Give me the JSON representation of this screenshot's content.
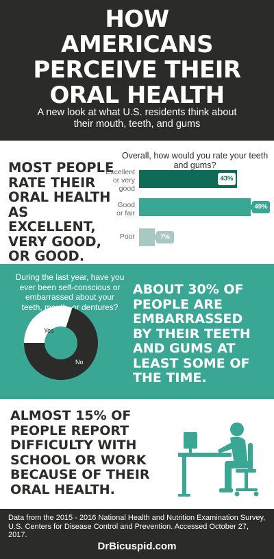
{
  "header": {
    "title_lines": [
      "HOW",
      "AMERICANS",
      "PERCEIVE THEIR",
      "ORAL HEALTH"
    ],
    "subtitle": "A new look at what U.S. residents think about their mouth, teeth, and gums"
  },
  "section_rating": {
    "headline_lines": [
      "MOST PEOPLE",
      "RATE THEIR",
      "ORAL HEALTH",
      "AS EXCELLENT,",
      "VERY GOOD,",
      "OR GOOD."
    ],
    "question": "Overall, how would you rate your teeth and gums?",
    "colors": {
      "excellent": "#0e6b58",
      "good": "#3aa795",
      "poor": "#a9c8c4"
    }
  },
  "chart_data": [
    {
      "type": "bar",
      "orientation": "horizontal",
      "title": "Overall, how would you rate your teeth and gums?",
      "categories": [
        "Excellent or very good",
        "Good or fair",
        "Poor"
      ],
      "category_lines": [
        [
          "Excellent",
          "or very",
          "good"
        ],
        [
          "Good",
          "or fair"
        ],
        [
          "Poor"
        ]
      ],
      "values": [
        43,
        49,
        7
      ],
      "labels": [
        "43%",
        "49%",
        "7%"
      ],
      "xlim": [
        0,
        49
      ],
      "grid": false
    },
    {
      "type": "pie",
      "variant": "donut",
      "title": "During the last year, have you ever been self-conscious or embarrassed about your teeth, mouth, or dentures?",
      "categories": [
        "Yes",
        "No"
      ],
      "values": [
        30,
        70
      ],
      "colors": [
        "#ffffff",
        "#2b2b2a"
      ]
    }
  ],
  "section_embarrassed": {
    "question": "During the last year, have you ever been self-conscious or embarrassed about your teeth, mouth, or dentures?",
    "yes_label": "Yes",
    "no_label": "No",
    "headline_lines": [
      "ABOUT 30% OF",
      "PEOPLE ARE",
      "EMBARRASSED",
      "BY THEIR TEETH",
      "AND GUMS AT",
      "LEAST SOME OF",
      "THE TIME."
    ]
  },
  "section_work": {
    "headline_lines": [
      "ALMOST 15% OF",
      "PEOPLE REPORT",
      "DIFFICULTY WITH",
      "SCHOOL OR WORK",
      "BECAUSE OF THEIR",
      "ORAL HEALTH."
    ],
    "icon": "person-at-desk-icon",
    "icon_color": "#3aa795"
  },
  "footer": {
    "note": "Data from the 2015 - 2016 National Health and Nutrition Examination Survey, U.S. Centers for Disease Control and Prevention. Accessed October 27, 2017.",
    "brand": "DrBicuspid.com"
  }
}
